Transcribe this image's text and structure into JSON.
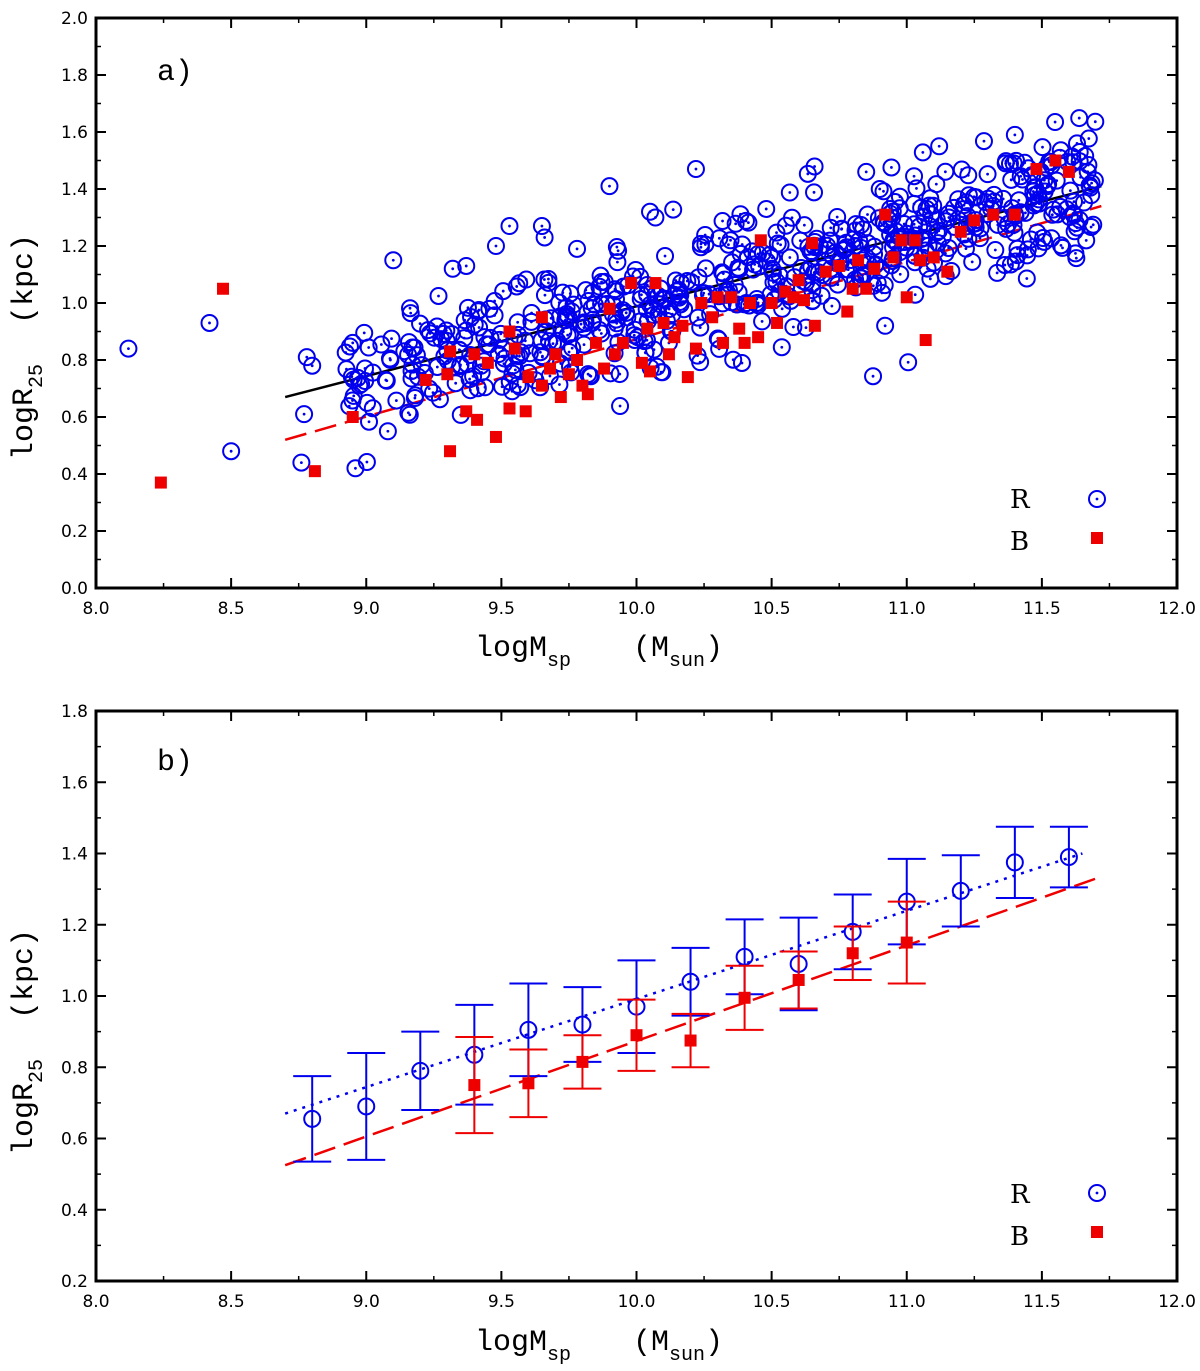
{
  "colors": {
    "r_series": "#0000ee",
    "b_series": "#ee0000",
    "fit_all": "#000000",
    "axes": "#000000"
  },
  "chart_data": [
    {
      "id": "panel-a",
      "type": "scatter",
      "panel_label": "a)",
      "xlabel": {
        "main": "logM",
        "sub": "sp",
        "unit_main": "(M",
        "unit_sub": "sun",
        "unit_close": ")"
      },
      "ylabel": {
        "main": "logR",
        "sub": "25",
        "unit": "(kpc)"
      },
      "xlim": [
        8.0,
        12.0
      ],
      "ylim": [
        0.0,
        2.0
      ],
      "xticks": [
        8.0,
        8.5,
        9.0,
        9.5,
        10.0,
        10.5,
        11.0,
        11.5,
        12.0
      ],
      "yticks": [
        0.0,
        0.2,
        0.4,
        0.6,
        0.8,
        1.0,
        1.2,
        1.4,
        1.6,
        1.8,
        2.0
      ],
      "xtick_labels": [
        "8.0",
        "8.5",
        "9.0",
        "9.5",
        "10.0",
        "10.5",
        "11.0",
        "11.5",
        "12.0"
      ],
      "ytick_labels": [
        "0.0",
        "0.2",
        "0.4",
        "0.6",
        "0.8",
        "1.0",
        "1.2",
        "1.4",
        "1.6",
        "1.8",
        "2.0"
      ],
      "legend": [
        {
          "label": "R",
          "marker": "circle-dot"
        },
        {
          "label": "B",
          "marker": "square"
        }
      ],
      "series": [
        {
          "name": "R",
          "marker": "circle-dot",
          "color": "#0000ee",
          "notable_points": [
            [
              8.12,
              0.84
            ],
            [
              8.42,
              0.93
            ],
            [
              8.5,
              0.48
            ],
            [
              8.76,
              0.44
            ],
            [
              8.77,
              0.61
            ],
            [
              8.8,
              0.78
            ],
            [
              8.78,
              0.81
            ],
            [
              8.96,
              0.42
            ],
            [
              8.95,
              0.86
            ],
            [
              9.1,
              1.15
            ],
            [
              9.08,
              0.55
            ],
            [
              9.32,
              1.12
            ],
            [
              9.37,
              1.13
            ],
            [
              9.48,
              1.2
            ],
            [
              9.53,
              1.27
            ],
            [
              9.65,
              1.27
            ],
            [
              9.66,
              1.23
            ],
            [
              9.78,
              1.19
            ],
            [
              9.9,
              1.41
            ],
            [
              10.05,
              1.32
            ],
            [
              10.07,
              1.3
            ],
            [
              10.22,
              1.47
            ],
            [
              10.12,
              0.86
            ],
            [
              10.48,
              1.33
            ],
            [
              10.85,
              1.46
            ],
            [
              10.9,
              1.4
            ],
            [
              11.12,
              1.55
            ],
            [
              11.4,
              1.59
            ],
            [
              11.63,
              1.56
            ],
            [
              11.64,
              1.53
            ],
            [
              11.52,
              1.41
            ],
            [
              10.92,
              0.92
            ]
          ],
          "main_cloud": {
            "x_range": [
              8.9,
              11.7
            ],
            "trend_intercept": -1.46,
            "trend_slope": 0.245,
            "scatter_sigma": 0.11,
            "count": 640
          }
        },
        {
          "name": "B",
          "marker": "square",
          "color": "#ee0000",
          "points": [
            [
              8.24,
              0.37
            ],
            [
              8.47,
              1.05
            ],
            [
              8.81,
              0.41
            ],
            [
              8.95,
              0.6
            ],
            [
              9.22,
              0.73
            ],
            [
              9.3,
              0.75
            ],
            [
              9.31,
              0.83
            ],
            [
              9.31,
              0.48
            ],
            [
              9.37,
              0.62
            ],
            [
              9.4,
              0.82
            ],
            [
              9.41,
              0.59
            ],
            [
              9.45,
              0.79
            ],
            [
              9.48,
              0.53
            ],
            [
              9.53,
              0.9
            ],
            [
              9.53,
              0.63
            ],
            [
              9.55,
              0.84
            ],
            [
              9.59,
              0.62
            ],
            [
              9.6,
              0.74
            ],
            [
              9.65,
              0.71
            ],
            [
              9.65,
              0.95
            ],
            [
              9.68,
              0.77
            ],
            [
              9.7,
              0.82
            ],
            [
              9.72,
              0.67
            ],
            [
              9.75,
              0.75
            ],
            [
              9.78,
              0.8
            ],
            [
              9.8,
              0.71
            ],
            [
              9.82,
              0.68
            ],
            [
              9.85,
              0.86
            ],
            [
              9.88,
              0.77
            ],
            [
              9.9,
              0.98
            ],
            [
              9.92,
              0.82
            ],
            [
              9.95,
              0.86
            ],
            [
              9.98,
              1.07
            ],
            [
              10.02,
              0.79
            ],
            [
              10.04,
              0.91
            ],
            [
              10.05,
              0.76
            ],
            [
              10.07,
              1.07
            ],
            [
              10.1,
              0.93
            ],
            [
              10.12,
              0.82
            ],
            [
              10.14,
              0.88
            ],
            [
              10.17,
              0.92
            ],
            [
              10.19,
              0.74
            ],
            [
              10.22,
              0.84
            ],
            [
              10.24,
              1.0
            ],
            [
              10.28,
              0.95
            ],
            [
              10.3,
              1.02
            ],
            [
              10.32,
              0.86
            ],
            [
              10.35,
              1.02
            ],
            [
              10.38,
              0.91
            ],
            [
              10.4,
              0.86
            ],
            [
              10.42,
              1.0
            ],
            [
              10.45,
              0.88
            ],
            [
              10.46,
              1.22
            ],
            [
              10.5,
              1.0
            ],
            [
              10.52,
              0.93
            ],
            [
              10.55,
              1.04
            ],
            [
              10.58,
              1.02
            ],
            [
              10.6,
              1.08
            ],
            [
              10.62,
              1.01
            ],
            [
              10.65,
              1.21
            ],
            [
              10.66,
              0.92
            ],
            [
              10.7,
              1.11
            ],
            [
              10.75,
              1.13
            ],
            [
              10.78,
              0.97
            ],
            [
              10.8,
              1.05
            ],
            [
              10.82,
              1.15
            ],
            [
              10.85,
              1.05
            ],
            [
              10.88,
              1.12
            ],
            [
              10.92,
              1.31
            ],
            [
              10.95,
              1.16
            ],
            [
              10.98,
              1.22
            ],
            [
              11.0,
              1.02
            ],
            [
              11.03,
              1.22
            ],
            [
              11.05,
              1.15
            ],
            [
              11.07,
              0.87
            ],
            [
              11.1,
              1.16
            ],
            [
              11.15,
              1.11
            ],
            [
              11.2,
              1.25
            ],
            [
              11.25,
              1.29
            ],
            [
              11.32,
              1.31
            ],
            [
              11.4,
              1.31
            ],
            [
              11.48,
              1.47
            ],
            [
              11.55,
              1.5
            ],
            [
              11.6,
              1.46
            ]
          ]
        },
        {
          "name": "fit R",
          "type": "line",
          "style": "solid",
          "color": "#000000",
          "x": [
            8.7,
            11.72
          ],
          "y": [
            0.67,
            1.41
          ]
        },
        {
          "name": "fit B",
          "type": "line",
          "style": "dashed",
          "color": "#ee0000",
          "x": [
            8.7,
            11.72
          ],
          "y": [
            0.52,
            1.34
          ]
        }
      ]
    },
    {
      "id": "panel-b",
      "type": "scatter",
      "panel_label": "b)",
      "xlabel": {
        "main": "logM",
        "sub": "sp",
        "unit_main": "(M",
        "unit_sub": "sun",
        "unit_close": ")"
      },
      "ylabel": {
        "main": "logR",
        "sub": "25",
        "unit": "(kpc)"
      },
      "xlim": [
        8.0,
        12.0
      ],
      "ylim": [
        0.2,
        1.8
      ],
      "xticks": [
        8.0,
        8.5,
        9.0,
        9.5,
        10.0,
        10.5,
        11.0,
        11.5,
        12.0
      ],
      "yticks": [
        0.2,
        0.4,
        0.6,
        0.8,
        1.0,
        1.2,
        1.4,
        1.6,
        1.8
      ],
      "xtick_labels": [
        "8.0",
        "8.5",
        "9.0",
        "9.5",
        "10.0",
        "10.5",
        "11.0",
        "11.5",
        "12.0"
      ],
      "ytick_labels": [
        "0.2",
        "0.4",
        "0.6",
        "0.8",
        "1.0",
        "1.2",
        "1.4",
        "1.6",
        "1.8"
      ],
      "legend": [
        {
          "label": "R",
          "marker": "circle-dot"
        },
        {
          "label": "B",
          "marker": "square"
        }
      ],
      "series": [
        {
          "name": "R",
          "marker": "circle",
          "color": "#0000ee",
          "x": [
            8.8,
            9.0,
            9.2,
            9.4,
            9.6,
            9.8,
            10.0,
            10.2,
            10.4,
            10.6,
            10.8,
            11.0,
            11.2,
            11.4,
            11.6
          ],
          "y": [
            0.655,
            0.69,
            0.79,
            0.835,
            0.905,
            0.92,
            0.97,
            1.04,
            1.11,
            1.09,
            1.18,
            1.265,
            1.295,
            1.375,
            1.39
          ],
          "err": [
            0.12,
            0.15,
            0.11,
            0.14,
            0.13,
            0.105,
            0.13,
            0.095,
            0.105,
            0.13,
            0.105,
            0.12,
            0.1,
            0.1,
            0.085
          ]
        },
        {
          "name": "B",
          "marker": "square",
          "color": "#ee0000",
          "x": [
            9.4,
            9.6,
            9.8,
            10.0,
            10.2,
            10.4,
            10.6,
            10.8,
            11.0
          ],
          "y": [
            0.75,
            0.755,
            0.815,
            0.89,
            0.875,
            0.995,
            1.045,
            1.12,
            1.15
          ],
          "err": [
            0.135,
            0.095,
            0.075,
            0.1,
            0.075,
            0.09,
            0.08,
            0.075,
            0.115
          ]
        },
        {
          "name": "fit R",
          "type": "line",
          "style": "dotted",
          "color": "#0000ee",
          "x": [
            8.7,
            11.65
          ],
          "y": [
            0.67,
            1.4
          ]
        },
        {
          "name": "fit B",
          "type": "line",
          "style": "dashed",
          "color": "#ee0000",
          "x": [
            8.7,
            11.72
          ],
          "y": [
            0.525,
            1.335
          ]
        }
      ]
    }
  ]
}
